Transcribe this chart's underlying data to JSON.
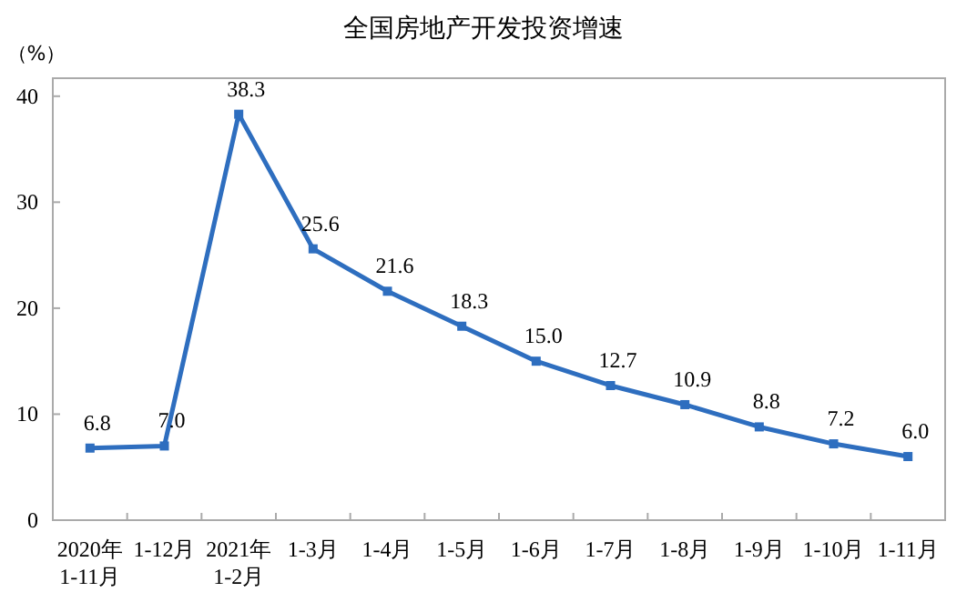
{
  "chart_data": {
    "type": "line",
    "title": "全国房地产开发投资增速",
    "ylabel": "（%）",
    "categories": [
      "2020年\n1-11月",
      "1-12月",
      "2021年\n1-2月",
      "1-3月",
      "1-4月",
      "1-5月",
      "1-6月",
      "1-7月",
      "1-8月",
      "1-9月",
      "1-10月",
      "1-11月"
    ],
    "series": [
      {
        "color": "#2e6ebf",
        "values": [
          6.8,
          7.0,
          38.3,
          25.6,
          21.6,
          18.3,
          15.0,
          12.7,
          10.9,
          8.8,
          7.2,
          6.0
        ],
        "value_labels": [
          "6.8",
          "7.0",
          "38.3",
          "25.6",
          "21.6",
          "18.3",
          "15.0",
          "12.7",
          "10.9",
          "8.8",
          "7.2",
          "6.0"
        ]
      }
    ],
    "ylim": [
      0,
      41.7
    ],
    "yticks": [
      0,
      10,
      20,
      30,
      40
    ],
    "marker": "square",
    "line_style": "solid"
  }
}
